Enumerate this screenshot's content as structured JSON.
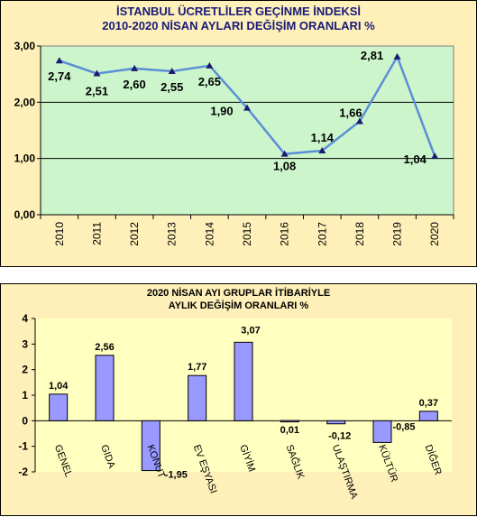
{
  "chart_data": [
    {
      "type": "line",
      "title_line1": "İSTANBUL ÜCRETLİLER GEÇİNME İNDEKSİ",
      "title_line2": "2010-2020  NİSAN AYLARI DEĞİŞİM  ORANLARI %",
      "categories": [
        "2010",
        "2011",
        "2012",
        "2013",
        "2014",
        "2015",
        "2016",
        "2017",
        "2018",
        "2019",
        "2020"
      ],
      "values": [
        2.74,
        2.51,
        2.6,
        2.55,
        2.65,
        1.9,
        1.08,
        1.14,
        1.66,
        2.81,
        1.04
      ],
      "data_labels": [
        "2,74",
        "2,51",
        "2,60",
        "2,55",
        "2,65",
        "1,90",
        "1,08",
        "1,14",
        "1,66",
        "2,81",
        "1,04"
      ],
      "ylim": [
        0,
        3
      ],
      "yticks": [
        "0,00",
        "1,00",
        "2,00",
        "3,00"
      ],
      "grid": true,
      "colors": {
        "line": "#5b8fd6",
        "marker": "#1a1a6e",
        "plot_bg": "#ccf5cc"
      }
    },
    {
      "type": "bar",
      "title_line1": "2020 NİSAN AYI  GRUPLAR İTİBARİYLE",
      "title_line2": "AYLIK DEĞİŞİM   ORANLARI  %",
      "categories": [
        "GENEL",
        "GIDA",
        "KONUT",
        "EV EŞYASI",
        "GİYİM",
        "SAĞLIK",
        "ULAŞTIRMA",
        "KÜLTÜR",
        "DİĞER"
      ],
      "values": [
        1.04,
        2.56,
        -1.95,
        1.77,
        3.07,
        0.01,
        -0.12,
        -0.85,
        0.37
      ],
      "data_labels": [
        "1,04",
        "2,56",
        "-1,95",
        "1,77",
        "3,07",
        "0,01",
        "-0,12",
        "-0,85",
        "0,37"
      ],
      "ylim": [
        -2,
        4
      ],
      "yticks": [
        "-2",
        "-1",
        "0",
        "1",
        "2",
        "3",
        "4"
      ],
      "grid": false,
      "colors": {
        "bar": "#9999ff",
        "bar_border": "#000000",
        "plot_bg": "#ffffc0"
      }
    }
  ]
}
